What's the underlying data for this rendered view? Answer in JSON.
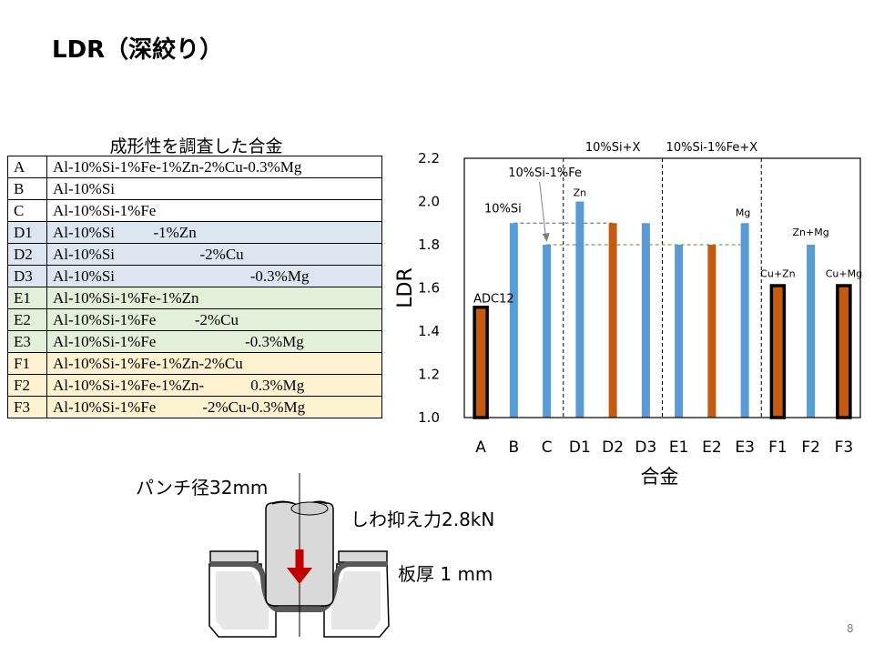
{
  "title": "LDR（深絞り）",
  "table": {
    "caption": "成形性を調査した合金",
    "rows": [
      {
        "id": "A",
        "comp": "Al-10%Si-1%Fe-1%Zn-2%Cu-0.3%Mg",
        "group": "white"
      },
      {
        "id": "B",
        "comp": "Al-10%Si",
        "group": "white"
      },
      {
        "id": "C",
        "comp": "Al-10%Si-1%Fe",
        "group": "white"
      },
      {
        "id": "D1",
        "comp": "Al-10%Si          -1%Zn",
        "group": "blue"
      },
      {
        "id": "D2",
        "comp": "Al-10%Si                      -2%Cu",
        "group": "blue"
      },
      {
        "id": "D3",
        "comp": "Al-10%Si                                   -0.3%Mg",
        "group": "blue"
      },
      {
        "id": "E1",
        "comp": "Al-10%Si-1%Fe-1%Zn",
        "group": "green"
      },
      {
        "id": "E2",
        "comp": "Al-10%Si-1%Fe          -2%Cu",
        "group": "green"
      },
      {
        "id": "E3",
        "comp": "Al-10%Si-1%Fe                       -0.3%Mg",
        "group": "green"
      },
      {
        "id": "F1",
        "comp": "Al-10%Si-1%Fe-1%Zn-2%Cu",
        "group": "orange"
      },
      {
        "id": "F2",
        "comp": "Al-10%Si-1%Fe-1%Zn-            0.3%Mg",
        "group": "orange"
      },
      {
        "id": "F3",
        "comp": "Al-10%Si-1%Fe            -2%Cu-0.3%Mg",
        "group": "orange"
      }
    ]
  },
  "chart_data": {
    "type": "bar",
    "categories": [
      "A",
      "B",
      "C",
      "D1",
      "D2",
      "D3",
      "E1",
      "E2",
      "E3",
      "F1",
      "F2",
      "F3"
    ],
    "values": [
      1.5,
      1.9,
      1.8,
      2.0,
      1.9,
      1.9,
      1.8,
      1.8,
      1.9,
      1.6,
      1.8,
      1.6
    ],
    "bar_colors": [
      "#c55a11",
      "#5b9bd5",
      "#5b9bd5",
      "#5b9bd5",
      "#c55a11",
      "#5b9bd5",
      "#5b9bd5",
      "#c55a11",
      "#5b9bd5",
      "#c55a11",
      "#5b9bd5",
      "#c55a11"
    ],
    "outlined": [
      true,
      false,
      false,
      false,
      false,
      false,
      false,
      false,
      false,
      true,
      false,
      true
    ],
    "ylim": [
      1.0,
      2.2
    ],
    "yticks": [
      "1.0",
      "1.2",
      "1.4",
      "1.6",
      "1.8",
      "2.0",
      "2.2"
    ],
    "ylabel": "LDR",
    "xlabel": "合金",
    "group_labels": [
      {
        "text": "10%Si+X",
        "at": "D2"
      },
      {
        "text": "10%Si-1%Fe+X",
        "at": "E2"
      }
    ],
    "bar_labels": [
      {
        "cat": "A",
        "text": "ADC12"
      },
      {
        "cat": "B",
        "text": "10%Si"
      },
      {
        "cat": "D1",
        "text": "Zn"
      },
      {
        "cat": "E3",
        "text": "Mg"
      },
      {
        "cat": "F1",
        "text": "Cu+Zn"
      },
      {
        "cat": "F2",
        "text": "Zn+Mg"
      },
      {
        "cat": "F3",
        "text": "Cu+Mg"
      }
    ],
    "callout": {
      "text": "10%Si-1%Fe",
      "target": "C"
    },
    "reference_lines": [
      {
        "value": 1.9,
        "from": "B",
        "to": "D2",
        "color": "#7f7f7f"
      },
      {
        "value": 1.8,
        "from": "C",
        "to": "E3",
        "color": "#70ad47"
      }
    ]
  },
  "diagram": {
    "punch_label": "パンチ径32mm",
    "holder_label": "しわ抑え力2.8kN",
    "thickness_label": "板厚 1 mm"
  },
  "page_number": "8"
}
